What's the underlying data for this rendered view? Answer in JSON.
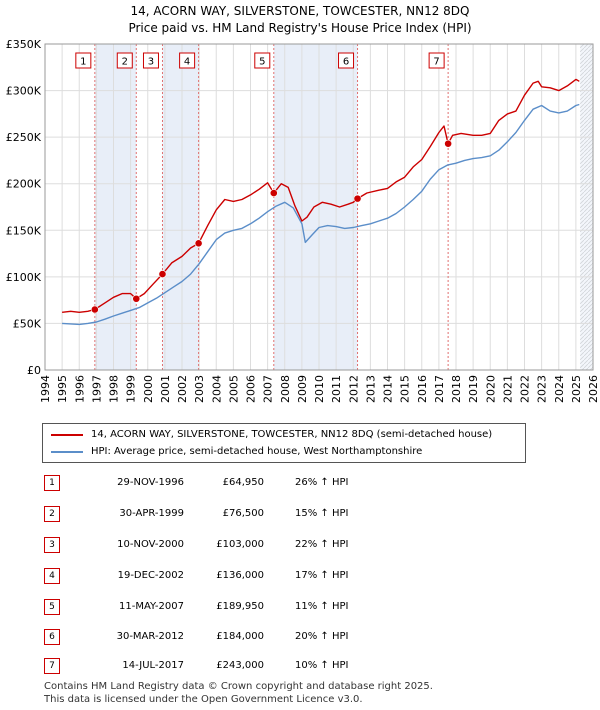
{
  "title_line1": "14, ACORN WAY, SILVERSTONE, TOWCESTER, NN12 8DQ",
  "title_line2": "Price paid vs. HM Land Registry's House Price Index (HPI)",
  "chart_data": {
    "type": "line",
    "title": "Price paid vs. HM Land Registry's House Price Index (HPI)",
    "xlim": [
      1994,
      2026
    ],
    "ylim": [
      0,
      350000
    ],
    "x_ticks": [
      "1994",
      "1995",
      "1996",
      "1997",
      "1998",
      "1999",
      "2000",
      "2001",
      "2002",
      "2003",
      "2004",
      "2005",
      "2006",
      "2007",
      "2008",
      "2009",
      "2010",
      "2011",
      "2012",
      "2013",
      "2014",
      "2015",
      "2016",
      "2017",
      "2018",
      "2019",
      "2020",
      "2021",
      "2022",
      "2023",
      "2024",
      "2025",
      "2026"
    ],
    "y_ticks": [
      {
        "value": 0,
        "label": "£0"
      },
      {
        "value": 50000,
        "label": "£50K"
      },
      {
        "value": 100000,
        "label": "£100K"
      },
      {
        "value": 150000,
        "label": "£150K"
      },
      {
        "value": 200000,
        "label": "£200K"
      },
      {
        "value": 250000,
        "label": "£250K"
      },
      {
        "value": 300000,
        "label": "£300K"
      },
      {
        "value": 350000,
        "label": "£350K"
      }
    ],
    "grid": true,
    "colors": {
      "property": "#cc0000",
      "hpi": "#5b8ec9",
      "band": "#e8eef8",
      "vline": "#e07070"
    },
    "data_end_year": 2025.25,
    "series": [
      {
        "name": "14, ACORN WAY, SILVERSTONE, TOWCESTER, NN12 8DQ (semi-detached house)",
        "color": "#cc0000",
        "x": [
          1995.0,
          1995.5,
          1996.0,
          1996.5,
          1996.91,
          1997.5,
          1998.0,
          1998.5,
          1999.0,
          1999.33,
          1999.8,
          2000.3,
          2000.86,
          2001.4,
          2002.0,
          2002.5,
          2002.97,
          2003.5,
          2004.0,
          2004.5,
          2005.0,
          2005.5,
          2006.0,
          2006.5,
          2007.0,
          2007.36,
          2007.8,
          2008.2,
          2008.6,
          2009.0,
          2009.3,
          2009.7,
          2010.2,
          2010.7,
          2011.2,
          2011.7,
          2012.0,
          2012.25,
          2012.8,
          2013.5,
          2014.0,
          2014.5,
          2015.0,
          2015.5,
          2016.0,
          2016.5,
          2017.0,
          2017.3,
          2017.54,
          2017.8,
          2018.3,
          2019.0,
          2019.5,
          2020.0,
          2020.5,
          2021.0,
          2021.5,
          2022.0,
          2022.5,
          2022.8,
          2023.0,
          2023.5,
          2024.0,
          2024.5,
          2025.0,
          2025.2
        ],
        "y": [
          62000,
          63000,
          62000,
          63000,
          64950,
          72000,
          78000,
          82000,
          82000,
          76500,
          82000,
          92000,
          103000,
          115000,
          122000,
          131000,
          136000,
          155000,
          172000,
          183000,
          181000,
          183000,
          188000,
          194000,
          201000,
          189950,
          200000,
          196000,
          176000,
          160000,
          164000,
          175000,
          180000,
          178000,
          175000,
          178000,
          180000,
          184000,
          190000,
          193000,
          195000,
          202000,
          207000,
          218000,
          226000,
          240000,
          255000,
          262000,
          243000,
          252000,
          254000,
          252000,
          252000,
          254000,
          268000,
          275000,
          278000,
          295000,
          308000,
          310000,
          304000,
          303000,
          300000,
          305000,
          312000,
          310000
        ]
      },
      {
        "name": "HPI: Average price, semi-detached house, West Northamptonshire",
        "color": "#5b8ec9",
        "x": [
          1995.0,
          1995.5,
          1996.0,
          1996.5,
          1997.0,
          1997.5,
          1998.0,
          1998.5,
          1999.0,
          1999.5,
          2000.0,
          2000.5,
          2001.0,
          2001.5,
          2002.0,
          2002.5,
          2003.0,
          2003.5,
          2004.0,
          2004.5,
          2005.0,
          2005.5,
          2006.0,
          2006.5,
          2007.0,
          2007.5,
          2008.0,
          2008.5,
          2009.0,
          2009.2,
          2009.6,
          2010.0,
          2010.5,
          2011.0,
          2011.5,
          2012.0,
          2012.5,
          2013.0,
          2013.5,
          2014.0,
          2014.5,
          2015.0,
          2015.5,
          2016.0,
          2016.5,
          2017.0,
          2017.5,
          2018.0,
          2018.5,
          2019.0,
          2019.5,
          2020.0,
          2020.5,
          2021.0,
          2021.5,
          2022.0,
          2022.5,
          2023.0,
          2023.5,
          2024.0,
          2024.5,
          2025.0,
          2025.2
        ],
        "y": [
          50000,
          49500,
          49000,
          50000,
          51500,
          54500,
          58000,
          61000,
          64000,
          67000,
          72000,
          77000,
          83000,
          89000,
          95000,
          103000,
          114000,
          127000,
          140000,
          147000,
          150000,
          152000,
          157000,
          163000,
          170000,
          176000,
          180000,
          174000,
          157000,
          137000,
          145000,
          153000,
          155000,
          154000,
          152000,
          153000,
          155000,
          157000,
          160000,
          163000,
          168000,
          175000,
          183000,
          192000,
          205000,
          215000,
          220000,
          222000,
          225000,
          227000,
          228000,
          230000,
          236000,
          245000,
          255000,
          268000,
          280000,
          284000,
          278000,
          276000,
          278000,
          284000,
          285000
        ]
      }
    ],
    "sales": [
      {
        "num": "1",
        "x": 1996.91,
        "price": 64950
      },
      {
        "num": "2",
        "x": 1999.33,
        "price": 76500
      },
      {
        "num": "3",
        "x": 2000.86,
        "price": 103000
      },
      {
        "num": "4",
        "x": 2002.97,
        "price": 136000
      },
      {
        "num": "5",
        "x": 2007.36,
        "price": 189950
      },
      {
        "num": "6",
        "x": 2012.25,
        "price": 184000
      },
      {
        "num": "7",
        "x": 2017.54,
        "price": 243000
      }
    ]
  },
  "legend": {
    "property_label": "14, ACORN WAY, SILVERSTONE, TOWCESTER, NN12 8DQ (semi-detached house)",
    "hpi_label": "HPI: Average price, semi-detached house, West Northamptonshire"
  },
  "sales_table": [
    {
      "num": "1",
      "date": "29-NOV-1996",
      "price": "£64,950",
      "hpi": "26% ↑ HPI"
    },
    {
      "num": "2",
      "date": "30-APR-1999",
      "price": "£76,500",
      "hpi": "15% ↑ HPI"
    },
    {
      "num": "3",
      "date": "10-NOV-2000",
      "price": "£103,000",
      "hpi": "22% ↑ HPI"
    },
    {
      "num": "4",
      "date": "19-DEC-2002",
      "price": "£136,000",
      "hpi": "17% ↑ HPI"
    },
    {
      "num": "5",
      "date": "11-MAY-2007",
      "price": "£189,950",
      "hpi": "11% ↑ HPI"
    },
    {
      "num": "6",
      "date": "30-MAR-2012",
      "price": "£184,000",
      "hpi": "20% ↑ HPI"
    },
    {
      "num": "7",
      "date": "14-JUL-2017",
      "price": "£243,000",
      "hpi": "10% ↑ HPI"
    }
  ],
  "footer_line1": "Contains HM Land Registry data © Crown copyright and database right 2025.",
  "footer_line2": "This data is licensed under the Open Government Licence v3.0."
}
